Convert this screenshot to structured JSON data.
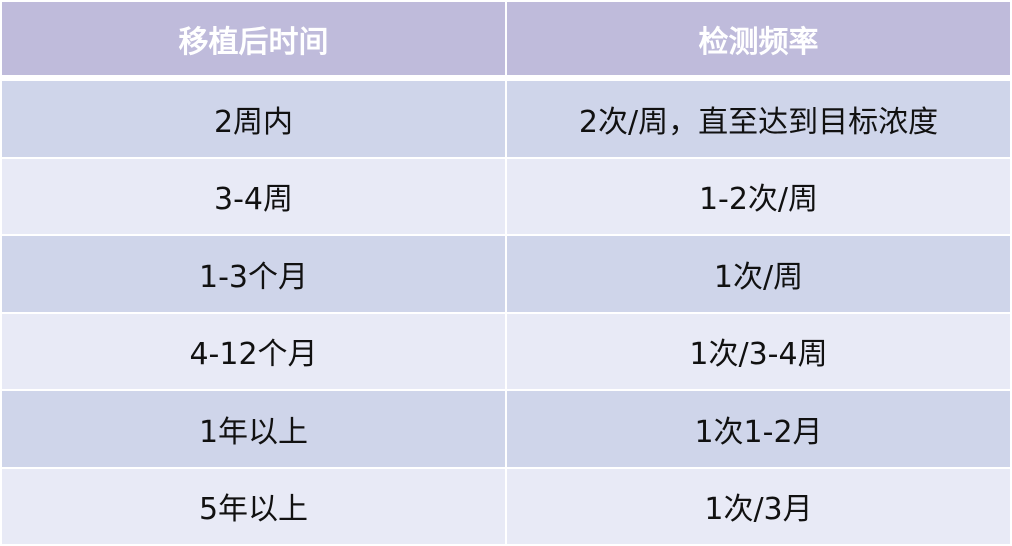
{
  "table": {
    "headers": [
      "移植后时间",
      "检测频率"
    ],
    "rows": [
      [
        "2周内",
        "2次/周，直至达到目标浓度"
      ],
      [
        "3-4周",
        "1-2次/周"
      ],
      [
        "1-3个月",
        "1次/周"
      ],
      [
        "4-12个月",
        "1次/3-4周"
      ],
      [
        "1年以上",
        "1次1-2月"
      ],
      [
        "5年以上",
        "1次/3月"
      ]
    ]
  },
  "colors": {
    "header": "#bfbbdb",
    "row_odd": "#cfd5ea",
    "row_even": "#e8eaf6"
  }
}
